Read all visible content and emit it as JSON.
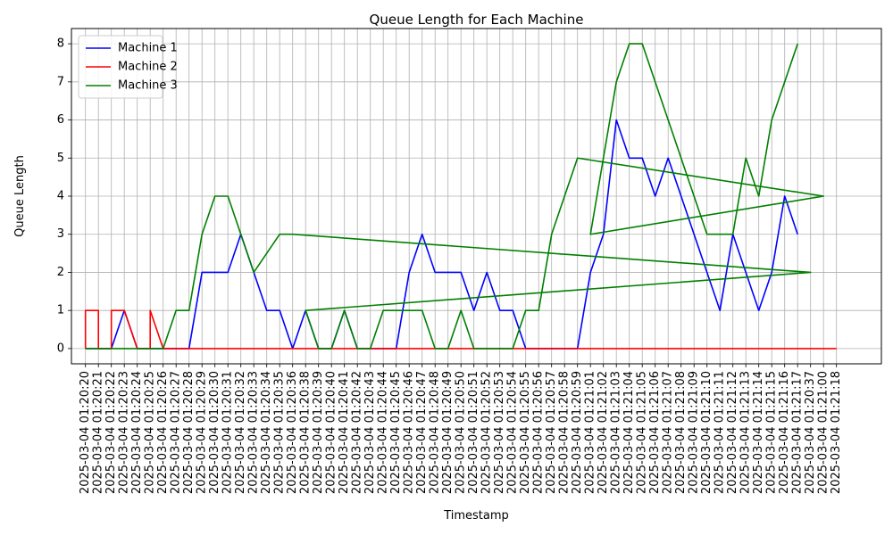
{
  "chart_data": {
    "type": "line",
    "title": "Queue Length for Each Machine",
    "xlabel": "Timestamp",
    "ylabel": "Queue Length",
    "ylim": [
      -0.4,
      8.4
    ],
    "yticks": [
      0,
      1,
      2,
      3,
      4,
      5,
      6,
      7,
      8
    ],
    "grid": true,
    "legend_position": "top-left",
    "categories": [
      "2025-03-04 01:20:20",
      "2025-03-04 01:20:21",
      "2025-03-04 01:20:22",
      "2025-03-04 01:20:23",
      "2025-03-04 01:20:24",
      "2025-03-04 01:20:25",
      "2025-03-04 01:20:26",
      "2025-03-04 01:20:27",
      "2025-03-04 01:20:28",
      "2025-03-04 01:20:29",
      "2025-03-04 01:20:30",
      "2025-03-04 01:20:31",
      "2025-03-04 01:20:32",
      "2025-03-04 01:20:33",
      "2025-03-04 01:20:34",
      "2025-03-04 01:20:35",
      "2025-03-04 01:20:36",
      "2025-03-04 01:20:38",
      "2025-03-04 01:20:39",
      "2025-03-04 01:20:40",
      "2025-03-04 01:20:41",
      "2025-03-04 01:20:42",
      "2025-03-04 01:20:43",
      "2025-03-04 01:20:44",
      "2025-03-04 01:20:45",
      "2025-03-04 01:20:46",
      "2025-03-04 01:20:47",
      "2025-03-04 01:20:48",
      "2025-03-04 01:20:49",
      "2025-03-04 01:20:50",
      "2025-03-04 01:20:51",
      "2025-03-04 01:20:52",
      "2025-03-04 01:20:53",
      "2025-03-04 01:20:54",
      "2025-03-04 01:20:55",
      "2025-03-04 01:20:56",
      "2025-03-04 01:20:57",
      "2025-03-04 01:20:58",
      "2025-03-04 01:20:59",
      "2025-03-04 01:21:01",
      "2025-03-04 01:21:02",
      "2025-03-04 01:21:03",
      "2025-03-04 01:21:04",
      "2025-03-04 01:21:05",
      "2025-03-04 01:21:06",
      "2025-03-04 01:21:07",
      "2025-03-04 01:21:08",
      "2025-03-04 01:21:09",
      "2025-03-04 01:21:10",
      "2025-03-04 01:21:11",
      "2025-03-04 01:21:12",
      "2025-03-04 01:21:13",
      "2025-03-04 01:21:14",
      "2025-03-04 01:21:15",
      "2025-03-04 01:21:16",
      "2025-03-04 01:21:17",
      "2025-03-04 01:20:37",
      "2025-03-04 01:21:00",
      "2025-03-04 01:21:18"
    ],
    "series": [
      {
        "name": "Machine 1",
        "color": "#0000ff",
        "points": [
          [
            0,
            0
          ],
          [
            1,
            0
          ],
          [
            2,
            0
          ],
          [
            3,
            1
          ],
          [
            4,
            0
          ],
          [
            5,
            0
          ],
          [
            6,
            0
          ],
          [
            7,
            0
          ],
          [
            8,
            0
          ],
          [
            9,
            2
          ],
          [
            10,
            2
          ],
          [
            11,
            2
          ],
          [
            12,
            3
          ],
          [
            13,
            2
          ],
          [
            14,
            1
          ],
          [
            15,
            1
          ],
          [
            16,
            0
          ],
          [
            17,
            1
          ],
          [
            18,
            0
          ],
          [
            19,
            0
          ],
          [
            20,
            1
          ],
          [
            21,
            0
          ],
          [
            22,
            0
          ],
          [
            23,
            0
          ],
          [
            24,
            0
          ],
          [
            25,
            2
          ],
          [
            26,
            3
          ],
          [
            27,
            2
          ],
          [
            28,
            2
          ],
          [
            29,
            2
          ],
          [
            30,
            1
          ],
          [
            31,
            2
          ],
          [
            32,
            1
          ],
          [
            33,
            1
          ],
          [
            34,
            0
          ],
          [
            35,
            0
          ],
          [
            36,
            0
          ],
          [
            37,
            0
          ],
          [
            38,
            0
          ],
          [
            39,
            2
          ],
          [
            40,
            3
          ],
          [
            41,
            6
          ],
          [
            42,
            5
          ],
          [
            43,
            5
          ],
          [
            44,
            4
          ],
          [
            45,
            5
          ],
          [
            46,
            4
          ],
          [
            47,
            3
          ],
          [
            48,
            2
          ],
          [
            49,
            1
          ],
          [
            50,
            3
          ],
          [
            51,
            2
          ],
          [
            52,
            1
          ],
          [
            53,
            2
          ],
          [
            54,
            4
          ],
          [
            55,
            3
          ]
        ]
      },
      {
        "name": "Machine 2",
        "color": "#ff0000",
        "points": [
          [
            0,
            0
          ],
          [
            0,
            1
          ],
          [
            1,
            1
          ],
          [
            1,
            0
          ],
          [
            2,
            0
          ],
          [
            2,
            1
          ],
          [
            3,
            1
          ],
          [
            4,
            0
          ],
          [
            5,
            0
          ],
          [
            5,
            1
          ],
          [
            6,
            0
          ],
          [
            7,
            0
          ],
          [
            8,
            0
          ],
          [
            9,
            0
          ],
          [
            10,
            0
          ],
          [
            11,
            0
          ],
          [
            12,
            0
          ],
          [
            13,
            0
          ],
          [
            14,
            0
          ],
          [
            15,
            0
          ],
          [
            16,
            0
          ],
          [
            17,
            0
          ],
          [
            18,
            0
          ],
          [
            19,
            0
          ],
          [
            20,
            0
          ],
          [
            21,
            0
          ],
          [
            22,
            0
          ],
          [
            23,
            0
          ],
          [
            24,
            0
          ],
          [
            25,
            0
          ],
          [
            26,
            0
          ],
          [
            27,
            0
          ],
          [
            28,
            0
          ],
          [
            29,
            0
          ],
          [
            30,
            0
          ],
          [
            31,
            0
          ],
          [
            32,
            0
          ],
          [
            33,
            0
          ],
          [
            34,
            0
          ],
          [
            35,
            0
          ],
          [
            36,
            0
          ],
          [
            37,
            0
          ],
          [
            38,
            0
          ],
          [
            39,
            0
          ],
          [
            40,
            0
          ],
          [
            41,
            0
          ],
          [
            42,
            0
          ],
          [
            43,
            0
          ],
          [
            44,
            0
          ],
          [
            45,
            0
          ],
          [
            46,
            0
          ],
          [
            47,
            0
          ],
          [
            48,
            0
          ],
          [
            49,
            0
          ],
          [
            50,
            0
          ],
          [
            51,
            0
          ],
          [
            52,
            0
          ],
          [
            53,
            0
          ],
          [
            54,
            0
          ],
          [
            55,
            0
          ],
          [
            56,
            0
          ],
          [
            57,
            0
          ],
          [
            58,
            0
          ]
        ]
      },
      {
        "name": "Machine 3",
        "color": "#008000",
        "points": [
          [
            0,
            0
          ],
          [
            1,
            0
          ],
          [
            2,
            0
          ],
          [
            3,
            0
          ],
          [
            4,
            0
          ],
          [
            5,
            0
          ],
          [
            6,
            0
          ],
          [
            7,
            1
          ],
          [
            8,
            1
          ],
          [
            9,
            3
          ],
          [
            10,
            4
          ],
          [
            11,
            4
          ],
          [
            12,
            3
          ],
          [
            13,
            2
          ],
          [
            14,
            2.5
          ],
          [
            15,
            3
          ],
          [
            16,
            3
          ],
          [
            56,
            2
          ],
          [
            17,
            1
          ],
          [
            18,
            0
          ],
          [
            19,
            0
          ],
          [
            20,
            1
          ],
          [
            21,
            0
          ],
          [
            22,
            0
          ],
          [
            23,
            1
          ],
          [
            24,
            1
          ],
          [
            25,
            1
          ],
          [
            26,
            1
          ],
          [
            27,
            0
          ],
          [
            28,
            0
          ],
          [
            29,
            1
          ],
          [
            30,
            0
          ],
          [
            31,
            0
          ],
          [
            32,
            0
          ],
          [
            33,
            0
          ],
          [
            34,
            1
          ],
          [
            35,
            1
          ],
          [
            36,
            3
          ],
          [
            37,
            4
          ],
          [
            38,
            5
          ],
          [
            57,
            4
          ],
          [
            39,
            3
          ],
          [
            40,
            5
          ],
          [
            41,
            7
          ],
          [
            42,
            8
          ],
          [
            43,
            8
          ],
          [
            44,
            7
          ],
          [
            45,
            6
          ],
          [
            46,
            5
          ],
          [
            47,
            4
          ],
          [
            48,
            3
          ],
          [
            49,
            3
          ],
          [
            50,
            3
          ],
          [
            51,
            5
          ],
          [
            52,
            4
          ],
          [
            53,
            6
          ],
          [
            54,
            7
          ],
          [
            55,
            8
          ]
        ]
      }
    ]
  }
}
